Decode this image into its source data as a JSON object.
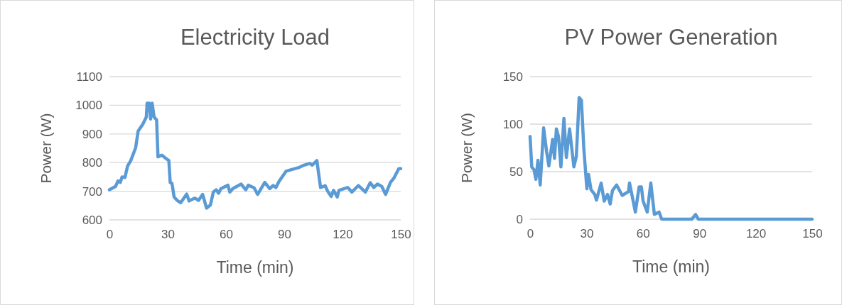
{
  "chart_data": [
    {
      "type": "line",
      "title": "Electricity Load",
      "xlabel": "Time (min)",
      "ylabel": "Power (W)",
      "xlim": [
        0,
        150
      ],
      "ylim": [
        600,
        1100
      ],
      "xticks": [
        0,
        30,
        60,
        90,
        120,
        150
      ],
      "yticks": [
        600,
        700,
        800,
        900,
        1000,
        1100
      ],
      "grid": "y",
      "line_style": "solid",
      "series": [
        {
          "color": "#5b9bd5",
          "x": [
            0,
            3.2,
            4.4,
            5.6,
            6.5,
            8,
            9.3,
            11,
            13.5,
            14.8,
            17.2,
            19,
            19.4,
            20.5,
            21.2,
            22,
            23,
            24.3,
            25,
            27,
            28.8,
            30.6,
            31.3,
            32.2,
            33.3,
            34.9,
            36.7,
            39.8,
            41,
            44,
            45.9,
            48,
            50,
            52,
            53.5,
            55,
            56.2,
            57.4,
            61,
            62,
            63.5,
            67.8,
            70.2,
            71.5,
            74.5,
            76.3,
            80,
            82.5,
            84.3,
            85.7,
            87.3,
            91,
            93.4,
            97.7,
            100.2,
            103.2,
            104.4,
            106.8,
            108.7,
            111.1,
            112.3,
            114.2,
            115.4,
            117.3,
            118.2,
            120.9,
            122.7,
            124.8,
            128.2,
            131.8,
            134.3,
            136.1,
            138,
            140.2,
            142.2,
            144.7,
            146.5,
            149,
            150
          ],
          "values": [
            705,
            717,
            736,
            731,
            750,
            748,
            787,
            807,
            852,
            910,
            934,
            959,
            1007,
            1007,
            952,
            1007,
            959,
            949,
            820,
            826,
            816,
            807,
            730,
            728,
            680,
            668,
            660,
            690,
            666,
            676,
            668,
            689,
            641,
            652,
            697,
            705,
            693,
            709,
            721,
            697,
            709,
            725,
            705,
            721,
            712,
            689,
            731,
            709,
            720,
            713,
            734,
            770,
            775,
            783,
            791,
            797,
            791,
            807,
            713,
            719,
            701,
            682,
            703,
            680,
            703,
            709,
            713,
            697,
            720,
            697,
            730,
            713,
            725,
            717,
            689,
            731,
            746,
            779,
            779
          ]
        }
      ]
    },
    {
      "type": "line",
      "title": "PV Power Generation",
      "xlabel": "Time (min)",
      "ylabel": "Power (W)",
      "xlim": [
        0,
        150
      ],
      "ylim": [
        0,
        150
      ],
      "xticks": [
        0,
        30,
        60,
        90,
        120,
        150
      ],
      "yticks": [
        0,
        50,
        100,
        150
      ],
      "grid": "y",
      "line_style": "solid",
      "series": [
        {
          "color": "#5b9bd5",
          "x": [
            0,
            0.9,
            2.1,
            3.1,
            4.2,
            5.4,
            7.2,
            8.8,
            10,
            12,
            13,
            14,
            15.1,
            16.4,
            18,
            19.3,
            21,
            23.3,
            24.6,
            26.1,
            27.3,
            28.6,
            30.2,
            31.1,
            32.4,
            34.4,
            35.3,
            37.8,
            39.4,
            41.2,
            42.6,
            43.8,
            46,
            49,
            52.3,
            52.9,
            56,
            58,
            59.2,
            60.1,
            62.3,
            64.2,
            66.1,
            68.6,
            70,
            86,
            88,
            89.5,
            150
          ],
          "values": [
            87,
            55,
            52,
            42,
            62,
            36,
            96,
            71,
            56,
            84,
            64,
            95,
            87,
            55,
            106,
            65,
            95,
            55,
            66,
            128,
            125,
            74,
            32,
            47,
            31,
            26,
            20,
            38,
            19,
            26,
            16,
            30,
            36,
            25,
            29,
            38,
            7.5,
            34,
            34,
            19,
            7.5,
            38,
            5,
            7.5,
            0,
            0,
            5,
            0,
            0
          ]
        }
      ]
    }
  ]
}
